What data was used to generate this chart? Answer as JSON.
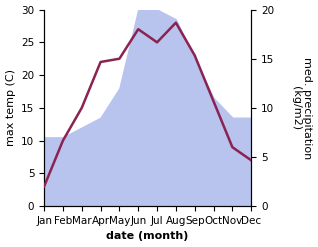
{
  "months": [
    "Jan",
    "Feb",
    "Mar",
    "Apr",
    "May",
    "Jun",
    "Jul",
    "Aug",
    "Sep",
    "Oct",
    "Nov",
    "Dec"
  ],
  "temperature": [
    3,
    10,
    15,
    22,
    22.5,
    27,
    25,
    28,
    23,
    16,
    9,
    7
  ],
  "precipitation_mm": [
    7,
    7,
    8,
    9,
    12,
    20,
    20,
    19,
    15,
    11,
    9,
    9
  ],
  "temp_color": "#8B2252",
  "precip_fill_color": "#b8c4ee",
  "temp_ylim": [
    0,
    30
  ],
  "precip_ylim": [
    0,
    20
  ],
  "xlabel": "date (month)",
  "ylabel_left": "max temp (C)",
  "ylabel_right": "med. precipitation\n(kg/m2)",
  "background_color": "#ffffff",
  "xlabel_fontsize": 8,
  "ylabel_fontsize": 8,
  "tick_fontsize": 7.5
}
